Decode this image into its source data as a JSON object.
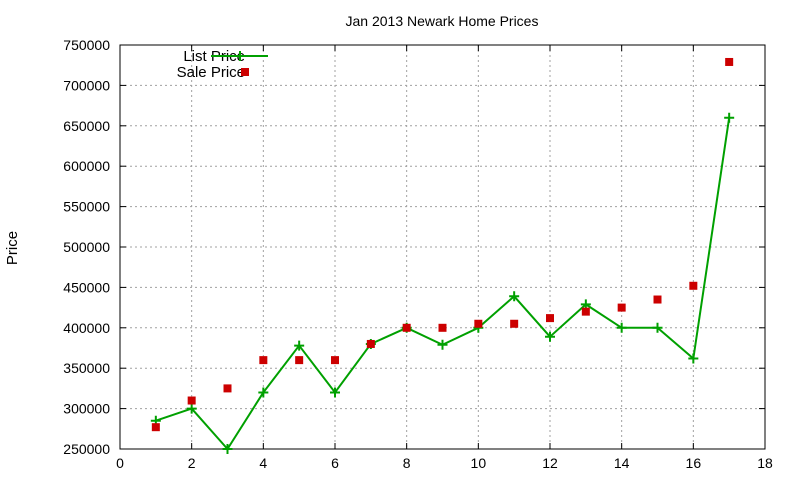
{
  "chart_data": {
    "type": "line",
    "title": "Jan 2013 Newark Home Prices",
    "xlabel": "",
    "ylabel": "Price",
    "xlim": [
      0,
      18
    ],
    "ylim": [
      250000,
      750000
    ],
    "x_ticks": [
      0,
      2,
      4,
      6,
      8,
      10,
      12,
      14,
      16,
      18
    ],
    "y_ticks": [
      250000,
      300000,
      350000,
      400000,
      450000,
      500000,
      550000,
      600000,
      650000,
      700000,
      750000
    ],
    "grid": true,
    "legend_position": "top-left",
    "series": [
      {
        "name": "List Price",
        "style": "line+cross",
        "color": "#00a000",
        "x": [
          1,
          2,
          3,
          4,
          5,
          6,
          7,
          8,
          9,
          10,
          11,
          12,
          13,
          14,
          15,
          16,
          17
        ],
        "values": [
          285000,
          300000,
          250000,
          320000,
          378000,
          320000,
          380000,
          400000,
          379000,
          400000,
          439000,
          389000,
          429000,
          400000,
          400000,
          362000,
          660000
        ]
      },
      {
        "name": "Sale Price",
        "style": "square",
        "color": "#cc0000",
        "x": [
          1,
          2,
          3,
          4,
          5,
          6,
          7,
          8,
          9,
          10,
          11,
          12,
          13,
          14,
          15,
          16,
          17
        ],
        "values": [
          277000,
          310000,
          325000,
          360000,
          360000,
          360000,
          380000,
          400000,
          400000,
          405000,
          405000,
          412000,
          420000,
          425000,
          435000,
          452000,
          729000
        ]
      }
    ]
  }
}
